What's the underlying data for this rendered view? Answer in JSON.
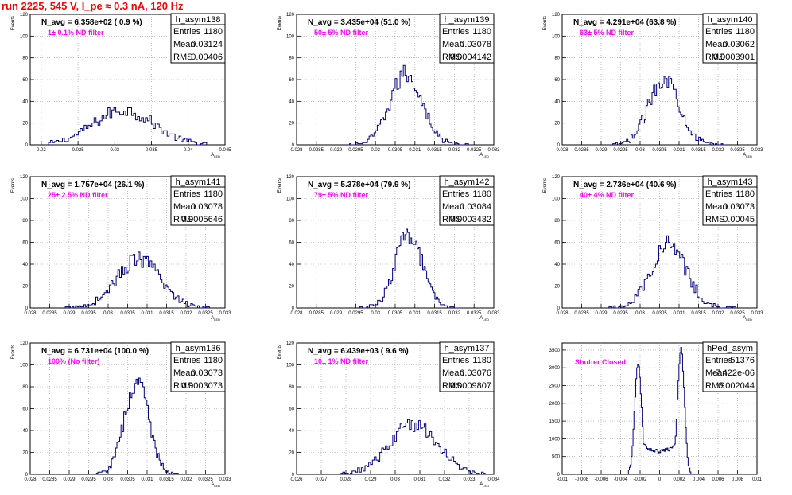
{
  "header": {
    "title": "run 2225,   545 V, I_pe ≈ 0.3 nA, 120 Hz"
  },
  "colors": {
    "title": "#ff0000",
    "hist": "#000080",
    "filter_text": "#ff00ff",
    "grid": "#9a9a9a"
  },
  "chart_data": [
    {
      "type": "bar",
      "name": "h_asym138",
      "annotation": "N_avg = 6.358e+02 ( 0.9 %)",
      "filter_label": "1± 0.1% ND filter",
      "stats": [
        [
          "Entries",
          "1180"
        ],
        [
          "Mean",
          "0.03124"
        ],
        [
          "RMS",
          "0.00406"
        ]
      ],
      "ylabel": "Events",
      "xlabel": "A_LED",
      "xlim": [
        0.0185,
        0.045
      ],
      "ylim": [
        0,
        120
      ],
      "xticks": [
        0.02,
        0.025,
        0.03,
        0.035,
        0.04,
        0.045
      ],
      "xticklabels": [
        "0.02",
        "0.025",
        "0.03",
        "0.035",
        "0.04",
        "0.045"
      ],
      "yticks": [
        0,
        20,
        40,
        60,
        80,
        100,
        120
      ],
      "curve": {
        "kind": "gauss",
        "mu": 0.0312,
        "sigma": 0.0041,
        "peak": 32,
        "xmin": 0.021,
        "xmax": 0.0425,
        "nbins": 80
      }
    },
    {
      "type": "bar",
      "name": "h_asym139",
      "annotation": "N_avg = 3.435e+04 (51.0 %)",
      "filter_label": "50± 5% ND filter",
      "stats": [
        [
          "Entries",
          "1180"
        ],
        [
          "Mean",
          "0.03078"
        ],
        [
          "RMS",
          "0.0004142"
        ]
      ],
      "ylabel": "Events",
      "xlabel": "A_LED",
      "xlim": [
        0.028,
        0.033
      ],
      "ylim": [
        0,
        120
      ],
      "xticks": [
        0.028,
        0.0285,
        0.029,
        0.0295,
        0.03,
        0.0305,
        0.031,
        0.0315,
        0.032,
        0.0325,
        0.033
      ],
      "xticklabels": [
        "0.028",
        "0.0285",
        "0.029",
        "0.0295",
        "0.03",
        "0.0305",
        "0.031",
        "0.0315",
        "0.032",
        "0.0325",
        "0.033"
      ],
      "yticks": [
        0,
        20,
        40,
        60,
        80,
        100,
        120
      ],
      "curve": {
        "kind": "gauss",
        "mu": 0.03078,
        "sigma": 0.00041,
        "peak": 65,
        "xmin": 0.0293,
        "xmax": 0.0324,
        "nbins": 75
      }
    },
    {
      "type": "bar",
      "name": "h_asym140",
      "annotation": "N_avg = 4.291e+04 (63.8 %)",
      "filter_label": "63± 5% ND filter",
      "stats": [
        [
          "Entries",
          "1180"
        ],
        [
          "Mean",
          "0.03062"
        ],
        [
          "RMS",
          "0.0003901"
        ]
      ],
      "ylabel": "Events",
      "xlabel": "A_LED",
      "xlim": [
        0.028,
        0.033
      ],
      "ylim": [
        0,
        120
      ],
      "xticks": [
        0.028,
        0.0285,
        0.029,
        0.0295,
        0.03,
        0.0305,
        0.031,
        0.0315,
        0.032,
        0.0325,
        0.033
      ],
      "xticklabels": [
        "0.028",
        "0.0285",
        "0.029",
        "0.0295",
        "0.03",
        "0.0305",
        "0.031",
        "0.0315",
        "0.032",
        "0.0325",
        "0.033"
      ],
      "yticks": [
        0,
        20,
        40,
        60,
        80,
        100,
        120
      ],
      "curve": {
        "kind": "gauss",
        "mu": 0.03062,
        "sigma": 0.00039,
        "peak": 62,
        "xmin": 0.0293,
        "xmax": 0.0322,
        "nbins": 75
      }
    },
    {
      "type": "bar",
      "name": "h_asym141",
      "annotation": "N_avg = 1.757e+04 (26.1 %)",
      "filter_label": "25± 2.5% ND filter",
      "stats": [
        [
          "Entries",
          "1180"
        ],
        [
          "Mean",
          "0.03078"
        ],
        [
          "RMS",
          "0.0005646"
        ]
      ],
      "ylabel": "Events",
      "xlabel": "A_LED",
      "xlim": [
        0.028,
        0.033
      ],
      "ylim": [
        0,
        120
      ],
      "xticks": [
        0.028,
        0.0285,
        0.029,
        0.0295,
        0.03,
        0.0305,
        0.031,
        0.0315,
        0.032,
        0.0325,
        0.033
      ],
      "xticklabels": [
        "0.028",
        "0.0285",
        "0.029",
        "0.0295",
        "0.03",
        "0.0305",
        "0.031",
        "0.0315",
        "0.032",
        "0.0325",
        "0.033"
      ],
      "yticks": [
        0,
        20,
        40,
        60,
        80,
        100,
        120
      ],
      "curve": {
        "kind": "gauss",
        "mu": 0.03078,
        "sigma": 0.00056,
        "peak": 44,
        "xmin": 0.0289,
        "xmax": 0.0326,
        "nbins": 85
      }
    },
    {
      "type": "bar",
      "name": "h_asym142",
      "annotation": "N_avg = 5.378e+04 (79.9 %)",
      "filter_label": "79± 5% ND filter",
      "stats": [
        [
          "Entries",
          "1180"
        ],
        [
          "Mean",
          "0.03084"
        ],
        [
          "RMS",
          "0.0003432"
        ]
      ],
      "ylabel": "Events",
      "xlabel": "A_LED",
      "xlim": [
        0.028,
        0.033
      ],
      "ylim": [
        0,
        120
      ],
      "xticks": [
        0.028,
        0.0285,
        0.029,
        0.0295,
        0.03,
        0.0305,
        0.031,
        0.0315,
        0.032,
        0.0325,
        0.033
      ],
      "xticklabels": [
        "0.028",
        "0.0285",
        "0.029",
        "0.0295",
        "0.03",
        "0.0305",
        "0.031",
        "0.0315",
        "0.032",
        "0.0325",
        "0.033"
      ],
      "yticks": [
        0,
        20,
        40,
        60,
        80,
        100,
        120
      ],
      "curve": {
        "kind": "gauss",
        "mu": 0.03084,
        "sigma": 0.00034,
        "peak": 68,
        "xmin": 0.0296,
        "xmax": 0.0322,
        "nbins": 75
      }
    },
    {
      "type": "bar",
      "name": "h_asym143",
      "annotation": "N_avg = 2.736e+04 (40.6 %)",
      "filter_label": "40± 4% ND filter",
      "stats": [
        [
          "Entries",
          "1180"
        ],
        [
          "Mean",
          "0.03073"
        ],
        [
          "RMS",
          "0.00045"
        ]
      ],
      "ylabel": "Events",
      "xlabel": "A_LED",
      "xlim": [
        0.028,
        0.033
      ],
      "ylim": [
        0,
        120
      ],
      "xticks": [
        0.028,
        0.0285,
        0.029,
        0.0295,
        0.03,
        0.0305,
        0.031,
        0.0315,
        0.032,
        0.0325,
        0.033
      ],
      "xticklabels": [
        "0.028",
        "0.0285",
        "0.029",
        "0.0295",
        "0.03",
        "0.0305",
        "0.031",
        "0.0315",
        "0.032",
        "0.0325",
        "0.033"
      ],
      "yticks": [
        0,
        20,
        40,
        60,
        80,
        100,
        120
      ],
      "curve": {
        "kind": "gauss",
        "mu": 0.03073,
        "sigma": 0.00045,
        "peak": 58,
        "xmin": 0.0292,
        "xmax": 0.0325,
        "nbins": 80
      }
    },
    {
      "type": "bar",
      "name": "h_asym136",
      "annotation": "N_avg = 6.731e+04 (100.0 %)",
      "filter_label": "100% (No filter)",
      "stats": [
        [
          "Entries",
          "1180"
        ],
        [
          "Mean",
          "0.03073"
        ],
        [
          "RMS",
          "0.0003073"
        ]
      ],
      "ylabel": "Events",
      "xlabel": "A_LED",
      "xlim": [
        0.028,
        0.033
      ],
      "ylim": [
        0,
        120
      ],
      "xticks": [
        0.028,
        0.0285,
        0.029,
        0.0295,
        0.03,
        0.0305,
        0.031,
        0.0315,
        0.032,
        0.0325,
        0.033
      ],
      "xticklabels": [
        "0.028",
        "0.0285",
        "0.029",
        "0.0295",
        "0.03",
        "0.0305",
        "0.031",
        "0.0315",
        "0.032",
        "0.0325",
        "0.033"
      ],
      "yticks": [
        0,
        20,
        40,
        60,
        80,
        100,
        120
      ],
      "curve": {
        "kind": "gauss",
        "mu": 0.03073,
        "sigma": 0.00031,
        "peak": 84,
        "xmin": 0.0297,
        "xmax": 0.0318,
        "nbins": 60
      }
    },
    {
      "type": "bar",
      "name": "h_asym137",
      "annotation": "N_avg = 6.439e+03 ( 9.6 %)",
      "filter_label": "10± 1% ND filter",
      "stats": [
        [
          "Entries",
          "1180"
        ],
        [
          "Mean",
          "0.03076"
        ],
        [
          "RMS",
          "0.0009807"
        ]
      ],
      "ylabel": "Events",
      "xlabel": "A_LED",
      "xlim": [
        0.026,
        0.034
      ],
      "ylim": [
        0,
        120
      ],
      "xticks": [
        0.026,
        0.027,
        0.028,
        0.029,
        0.03,
        0.031,
        0.032,
        0.033,
        0.034
      ],
      "xticklabels": [
        "0.026",
        "0.027",
        "0.028",
        "0.029",
        "0.03",
        "0.031",
        "0.032",
        "0.033",
        "0.034"
      ],
      "yticks": [
        0,
        20,
        40,
        60,
        80,
        100,
        120
      ],
      "curve": {
        "kind": "gauss",
        "mu": 0.03076,
        "sigma": 0.00098,
        "peak": 46,
        "xmin": 0.0278,
        "xmax": 0.0338,
        "nbins": 80
      }
    },
    {
      "type": "bar",
      "name": "hPed_asym",
      "annotation": "",
      "filter_label": "Shutter Closed",
      "stats": [
        [
          "Entries",
          "51376"
        ],
        [
          "Mean",
          "-7.422e-06"
        ],
        [
          "RMS",
          "0.002044"
        ]
      ],
      "ylabel": "",
      "xlabel": "",
      "xlim": [
        -0.01,
        0.01
      ],
      "ylim": [
        0,
        3700
      ],
      "xticks": [
        -0.01,
        -0.008,
        -0.006,
        -0.004,
        -0.002,
        0,
        0.002,
        0.004,
        0.006,
        0.008,
        0.01
      ],
      "xticklabels": [
        "-0.01",
        "-0.008",
        "-0.006",
        "-0.004",
        "-0.002",
        "0",
        "0.002",
        "0.004",
        "0.006",
        "0.008",
        "0.01"
      ],
      "yticks": [
        0,
        500,
        1000,
        1500,
        2000,
        2500,
        3000,
        3500
      ],
      "curve": {
        "kind": "bimodal",
        "mu1": -0.0022,
        "mu2": 0.0022,
        "sigma": 0.00035,
        "peak1": 3150,
        "peak2": 3550,
        "floor": 650,
        "xmin": -0.0032,
        "xmax": 0.0034,
        "nbins": 70
      }
    }
  ]
}
